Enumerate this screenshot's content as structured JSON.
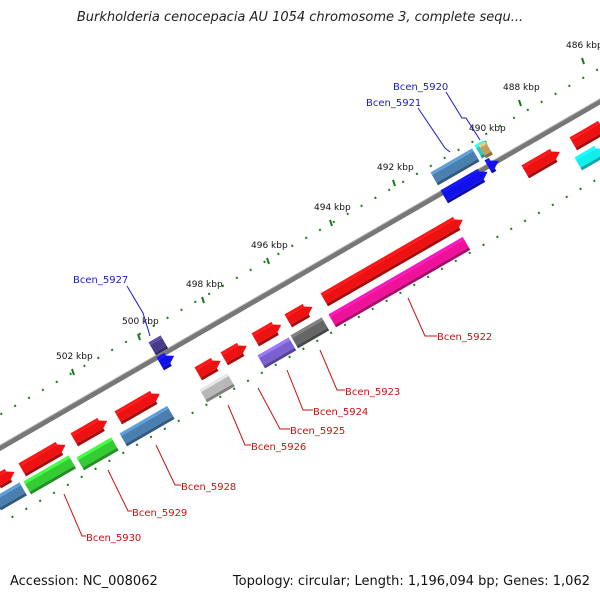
{
  "title": "Burkholderia cenocepacia AU 1054 chromosome 3, complete sequ...",
  "footer": {
    "accession": "Accession: NC_008062",
    "summary": "Topology: circular; Length: 1,196,094 bp; Genes: 1,062"
  },
  "colors": {
    "backbone": "#777777",
    "tick": "#1a7a1a",
    "upper_label": "#1a1acc",
    "lower_label": "#cc1111"
  },
  "ticks": [
    {
      "label": "486 kbp"
    },
    {
      "label": "488 kbp"
    },
    {
      "label": "490 kbp"
    },
    {
      "label": "492 kbp"
    },
    {
      "label": "494 kbp"
    },
    {
      "label": "496 kbp"
    },
    {
      "label": "498 kbp"
    },
    {
      "label": "500 kbp"
    },
    {
      "label": "502 kbp"
    }
  ],
  "gene_labels": [
    {
      "name": "Bcen_5920",
      "side": "upper"
    },
    {
      "name": "Bcen_5921",
      "side": "upper"
    },
    {
      "name": "Bcen_5927",
      "side": "upper"
    },
    {
      "name": "Bcen_5922",
      "side": "lower"
    },
    {
      "name": "Bcen_5923",
      "side": "lower"
    },
    {
      "name": "Bcen_5924",
      "side": "lower"
    },
    {
      "name": "Bcen_5925",
      "side": "lower"
    },
    {
      "name": "Bcen_5926",
      "side": "lower"
    },
    {
      "name": "Bcen_5928",
      "side": "lower"
    },
    {
      "name": "Bcen_5929",
      "side": "lower"
    },
    {
      "name": "Bcen_5930",
      "side": "lower"
    }
  ]
}
